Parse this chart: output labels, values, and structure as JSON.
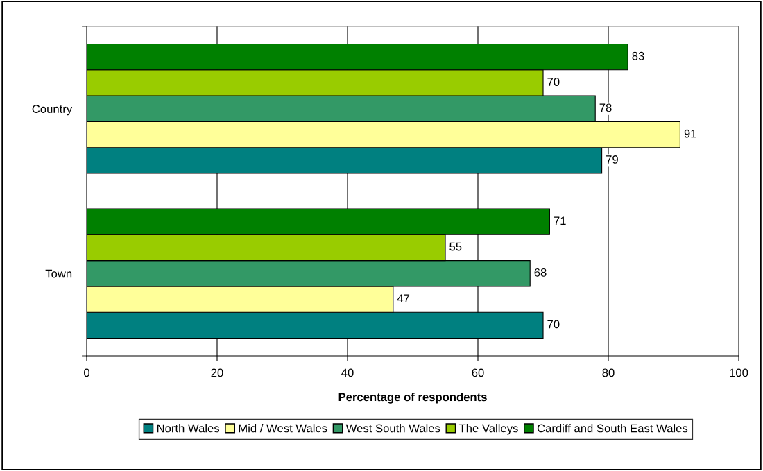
{
  "chart_data": {
    "type": "bar",
    "orientation": "horizontal",
    "xlabel": "Percentage of respondents",
    "categories": [
      "Country",
      "Town"
    ],
    "series": [
      {
        "name": "North Wales",
        "color": "#008080",
        "values": [
          79,
          70
        ]
      },
      {
        "name": "Mid / West Wales",
        "color": "#ffff99",
        "values": [
          91,
          47
        ]
      },
      {
        "name": "West South Wales",
        "color": "#339966",
        "values": [
          78,
          68
        ]
      },
      {
        "name": "The Valleys",
        "color": "#99cc00",
        "values": [
          70,
          55
        ]
      },
      {
        "name": "Cardiff and South East Wales",
        "color": "#008000",
        "values": [
          83,
          71
        ]
      }
    ],
    "xlim": [
      0,
      100
    ],
    "xticks": [
      0,
      20,
      40,
      60,
      80,
      100
    ],
    "grid": "x",
    "legend": "bottom",
    "data_labels": true
  }
}
